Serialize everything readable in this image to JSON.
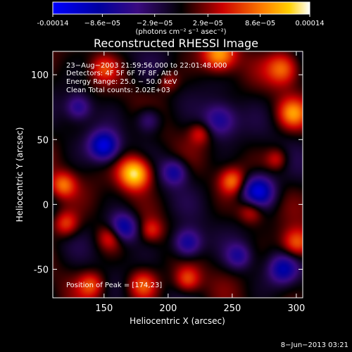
{
  "chart_data": {
    "type": "heatmap",
    "title": "Reconstructed RHESSI Image",
    "xlabel": "Heliocentric X (arcsec)",
    "ylabel": "Heliocentric Y (arcsec)",
    "xlim": [
      110,
      305
    ],
    "ylim": [
      -72,
      118
    ],
    "xticks": [
      150,
      200,
      250,
      300
    ],
    "yticks": [
      -50,
      0,
      50,
      100
    ],
    "colorbar": {
      "min": -0.00014,
      "max": 0.00014,
      "ticks": [
        {
          "value": -0.00014,
          "label": "-0.00014"
        },
        {
          "value": -8.6e-05,
          "label": "−8.6e−05"
        },
        {
          "value": -2.9e-05,
          "label": "−2.9e−05"
        },
        {
          "value": 2.9e-05,
          "label": "2.9e−05"
        },
        {
          "value": 8.6e-05,
          "label": "8.6e−05"
        },
        {
          "value": 0.00014,
          "label": "0.00014"
        }
      ],
      "unit_label": "(photons cm⁻² s⁻¹ asec⁻²)"
    },
    "annotations": [
      "23−Aug−2003 21:59:56.000 to 22:01:48.000",
      "Detectors: 4F 5F 6F 7F 8F, Att 0",
      "Energy Range: 25.0 − 50.0 keV",
      "Clean     Total counts: 2.02E+03"
    ],
    "peak_label": "Position of Peak = [174,23]",
    "peak": [
      174,
      23
    ],
    "blobs": [
      {
        "x": 174,
        "y": 24,
        "s": 9,
        "a": 1.0
      },
      {
        "x": 240,
        "y": 115,
        "s": 9,
        "a": 0.7
      },
      {
        "x": 290,
        "y": 105,
        "s": 9,
        "a": 0.6
      },
      {
        "x": 297,
        "y": 70,
        "s": 8,
        "a": 0.55
      },
      {
        "x": 118,
        "y": 15,
        "s": 7,
        "a": 0.55
      },
      {
        "x": 120,
        "y": -15,
        "s": 7,
        "a": 0.5
      },
      {
        "x": 155,
        "y": -25,
        "s": 7,
        "a": 0.45
      },
      {
        "x": 187,
        "y": -20,
        "s": 6,
        "a": 0.35
      },
      {
        "x": 215,
        "y": -58,
        "s": 7,
        "a": 0.5
      },
      {
        "x": 250,
        "y": 18,
        "s": 7,
        "a": 0.55
      },
      {
        "x": 265,
        "y": -5,
        "s": 7,
        "a": 0.45
      },
      {
        "x": 225,
        "y": 55,
        "s": 6,
        "a": 0.35
      },
      {
        "x": 180,
        "y": -62,
        "s": 8,
        "a": 0.55
      },
      {
        "x": 140,
        "y": -62,
        "s": 7,
        "a": 0.45
      },
      {
        "x": 300,
        "y": -30,
        "s": 8,
        "a": 0.6
      },
      {
        "x": 285,
        "y": 35,
        "s": 6,
        "a": 0.35
      },
      {
        "x": 150,
        "y": 105,
        "s": 7,
        "a": 0.35
      },
      {
        "x": 200,
        "y": 95,
        "s": 6,
        "a": 0.3
      },
      {
        "x": 150,
        "y": 45,
        "s": 8,
        "a": -0.85
      },
      {
        "x": 205,
        "y": 25,
        "s": 7,
        "a": -0.55
      },
      {
        "x": 165,
        "y": -18,
        "s": 8,
        "a": -0.75
      },
      {
        "x": 215,
        "y": -30,
        "s": 8,
        "a": -0.7
      },
      {
        "x": 270,
        "y": 10,
        "s": 9,
        "a": -0.9
      },
      {
        "x": 290,
        "y": -50,
        "s": 8,
        "a": -0.6
      },
      {
        "x": 240,
        "y": 65,
        "s": 9,
        "a": -0.55
      },
      {
        "x": 130,
        "y": 75,
        "s": 7,
        "a": -0.5
      },
      {
        "x": 185,
        "y": 65,
        "s": 7,
        "a": -0.45
      },
      {
        "x": 255,
        "y": -40,
        "s": 7,
        "a": -0.45
      }
    ]
  },
  "footer": {
    "date": "8−Jun−2013 03:21"
  }
}
